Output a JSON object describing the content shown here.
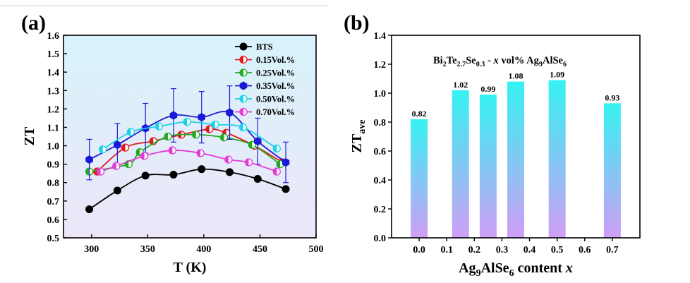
{
  "panels": {
    "a": "(a)",
    "b": "(b)"
  },
  "chart_data": [
    {
      "type": "line",
      "panel": "(a)",
      "xlabel": "T (K)",
      "ylabel": "ZT",
      "xlim": [
        275,
        500
      ],
      "ylim": [
        0.5,
        1.6
      ],
      "xticks": [
        300,
        350,
        400,
        450,
        500
      ],
      "yticks": [
        0.5,
        0.6,
        0.7,
        0.8,
        0.9,
        1.0,
        1.1,
        1.2,
        1.3,
        1.4,
        1.5,
        1.6
      ],
      "legend_position": "top-right",
      "series": [
        {
          "name": "BTS",
          "color": "#000000",
          "marker": "circle-filled",
          "x": [
            298,
            323,
            348,
            373,
            398,
            423,
            448,
            473
          ],
          "y": [
            0.655,
            0.757,
            0.838,
            0.843,
            0.873,
            0.857,
            0.82,
            0.765
          ]
        },
        {
          "name": "0.15Vol.%",
          "color": "#e31a1c",
          "marker": "circle-half",
          "x": [
            305,
            330,
            355,
            380,
            405,
            420,
            445,
            470
          ],
          "y": [
            0.86,
            0.99,
            1.025,
            1.06,
            1.09,
            1.07,
            1.0,
            0.91
          ]
        },
        {
          "name": "0.25Vol.%",
          "color": "#22aa22",
          "marker": "circle-half",
          "x": [
            298,
            333,
            343,
            368,
            393,
            418,
            443,
            468
          ],
          "y": [
            0.86,
            0.9,
            0.965,
            1.05,
            1.06,
            1.045,
            1.005,
            0.9
          ]
        },
        {
          "name": "0.35Vol.%",
          "color": "#1a1ad6",
          "marker": "hexagon-filled",
          "x": [
            298,
            323,
            348,
            373,
            398,
            423,
            448,
            473
          ],
          "y": [
            0.925,
            1.005,
            1.095,
            1.165,
            1.155,
            1.18,
            1.025,
            0.91
          ],
          "error": [
            0.11,
            0.115,
            0.135,
            0.145,
            0.14,
            0.145,
            0.125,
            0.11
          ]
        },
        {
          "name": "0.50Vol.%",
          "color": "#19d2e8",
          "marker": "circle-half",
          "x": [
            310,
            335,
            360,
            385,
            410,
            435,
            465
          ],
          "y": [
            0.98,
            1.075,
            1.105,
            1.13,
            1.115,
            1.1,
            0.985
          ]
        },
        {
          "name": "0.70Vol.%",
          "color": "#e23bd6",
          "marker": "circle-half",
          "x": [
            308,
            322,
            347,
            372,
            397,
            422,
            440,
            465
          ],
          "y": [
            0.86,
            0.89,
            0.945,
            0.975,
            0.96,
            0.925,
            0.91,
            0.86
          ]
        }
      ]
    },
    {
      "type": "bar",
      "panel": "(b)",
      "xlabel": "Ag9AlSe6 content x",
      "ylabel": "ZTave",
      "xlim": [
        -0.1,
        0.8
      ],
      "ylim": [
        0.0,
        1.4
      ],
      "xticks": [
        0.0,
        0.1,
        0.2,
        0.3,
        0.4,
        0.5,
        0.6,
        0.7
      ],
      "yticks": [
        0.0,
        0.2,
        0.4,
        0.6,
        0.8,
        1.0,
        1.2,
        1.4
      ],
      "annotation": "Bi2Te2.7Se0.3 - x vol% Ag9AlSe6",
      "x": [
        0.0,
        0.15,
        0.25,
        0.35,
        0.5,
        0.7
      ],
      "values": [
        0.82,
        1.02,
        0.99,
        1.08,
        1.09,
        0.93
      ],
      "labels": [
        "0.82",
        "1.02",
        "0.99",
        "1.08",
        "1.09",
        "0.93"
      ],
      "gradient": [
        "#35f2f2",
        "#cf9ef5"
      ]
    }
  ]
}
